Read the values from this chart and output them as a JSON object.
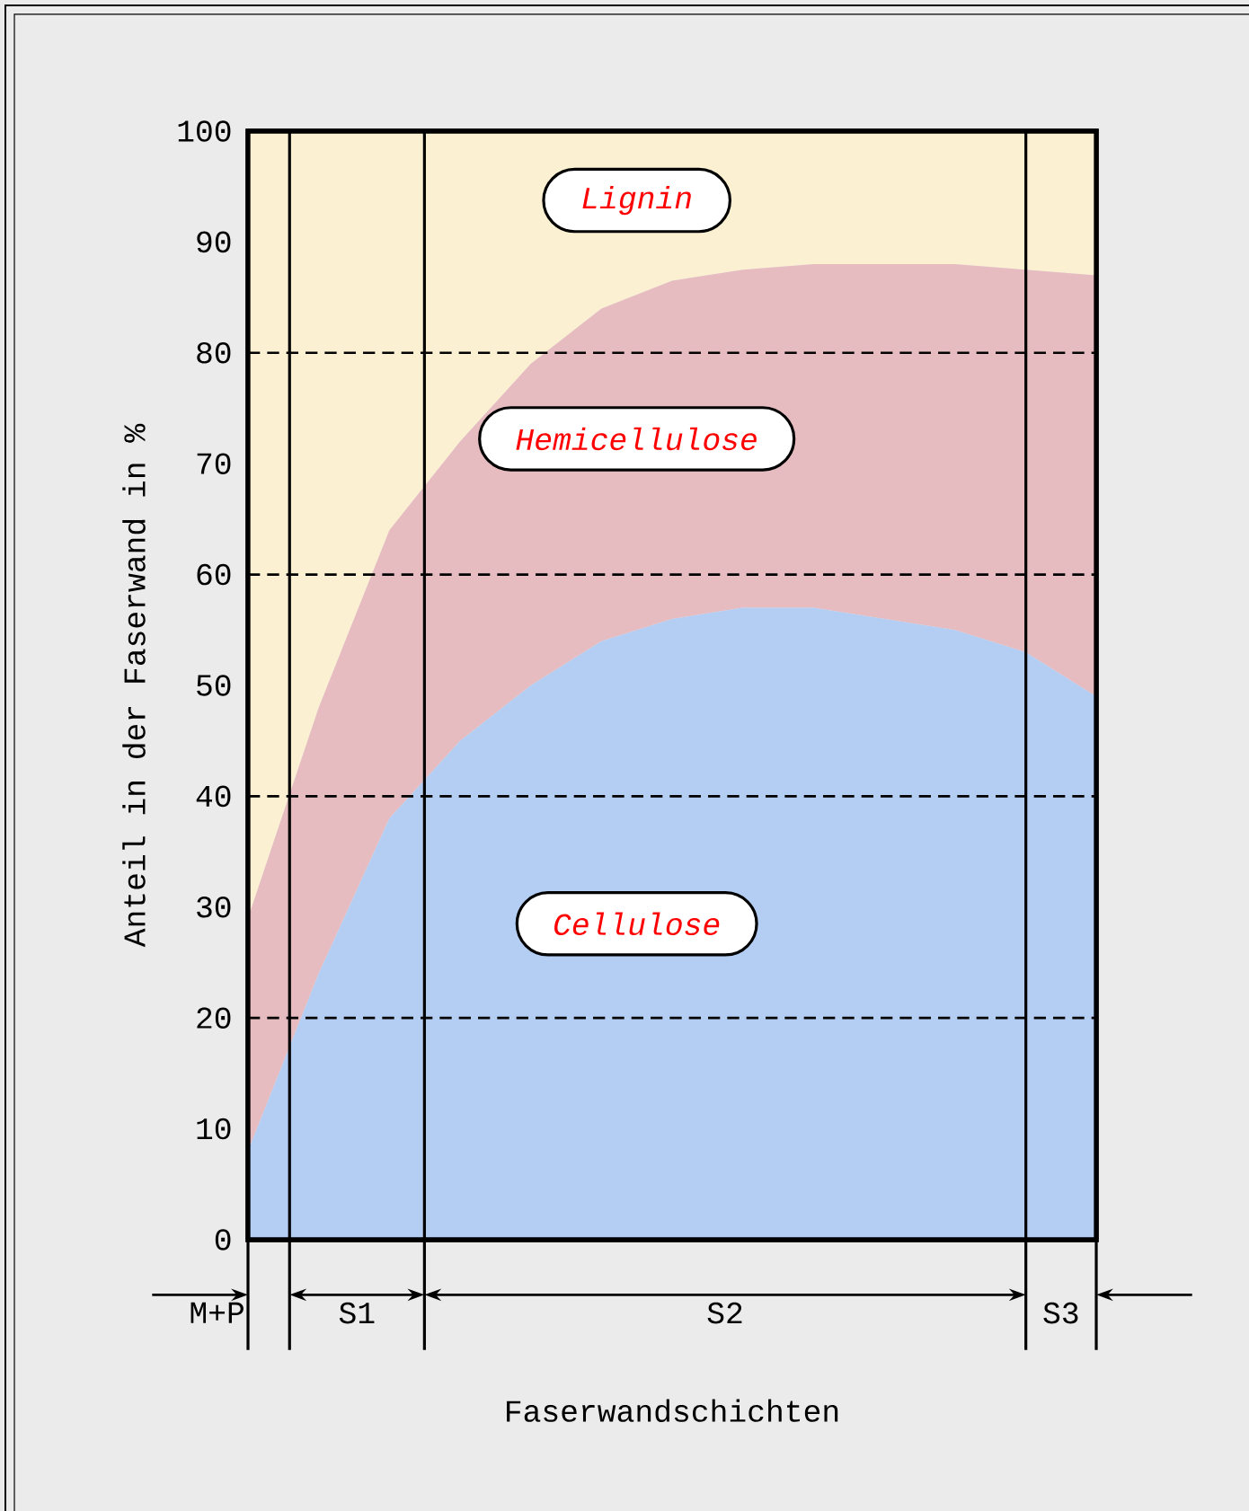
{
  "chart_data": {
    "type": "area",
    "stacked": true,
    "xlabel": "Faserwandschichten",
    "ylabel": "Anteil in der Faserwand in %",
    "categories": [
      null,
      null,
      null,
      null,
      null,
      null,
      null,
      null,
      null,
      null,
      null,
      null,
      null
    ],
    "ylim": [
      0,
      100
    ],
    "yticks": [
      0,
      10,
      20,
      30,
      40,
      50,
      60,
      70,
      80,
      90,
      100
    ],
    "tick_labels": "y",
    "series": [
      {
        "name": "Cellulose",
        "color": "#b4cdf2",
        "values": [
          8,
          24,
          38,
          45,
          50,
          54,
          56,
          57,
          57,
          56,
          55,
          53,
          49
        ]
      },
      {
        "name": "Hemicellulose",
        "color": "#e6bcc0",
        "values": [
          21,
          24,
          26,
          27,
          29,
          30,
          30.5,
          30.5,
          31,
          32,
          33,
          34.5,
          38
        ]
      },
      {
        "name": "Lignin",
        "color": "#fbf0d2",
        "values": [
          71,
          52,
          36,
          28,
          21,
          16,
          13.5,
          12.5,
          12,
          12,
          12,
          12.5,
          13
        ]
      }
    ],
    "ref_lines": [
      {
        "axis": "y",
        "value": 20,
        "line_style": "dashed"
      },
      {
        "axis": "y",
        "value": 40,
        "line_style": "dashed"
      },
      {
        "axis": "y",
        "value": 60,
        "line_style": "dashed"
      },
      {
        "axis": "y",
        "value": 80,
        "line_style": "dashed"
      }
    ],
    "annotations": [
      "M+P",
      "S1",
      "S2",
      "S3"
    ]
  }
}
